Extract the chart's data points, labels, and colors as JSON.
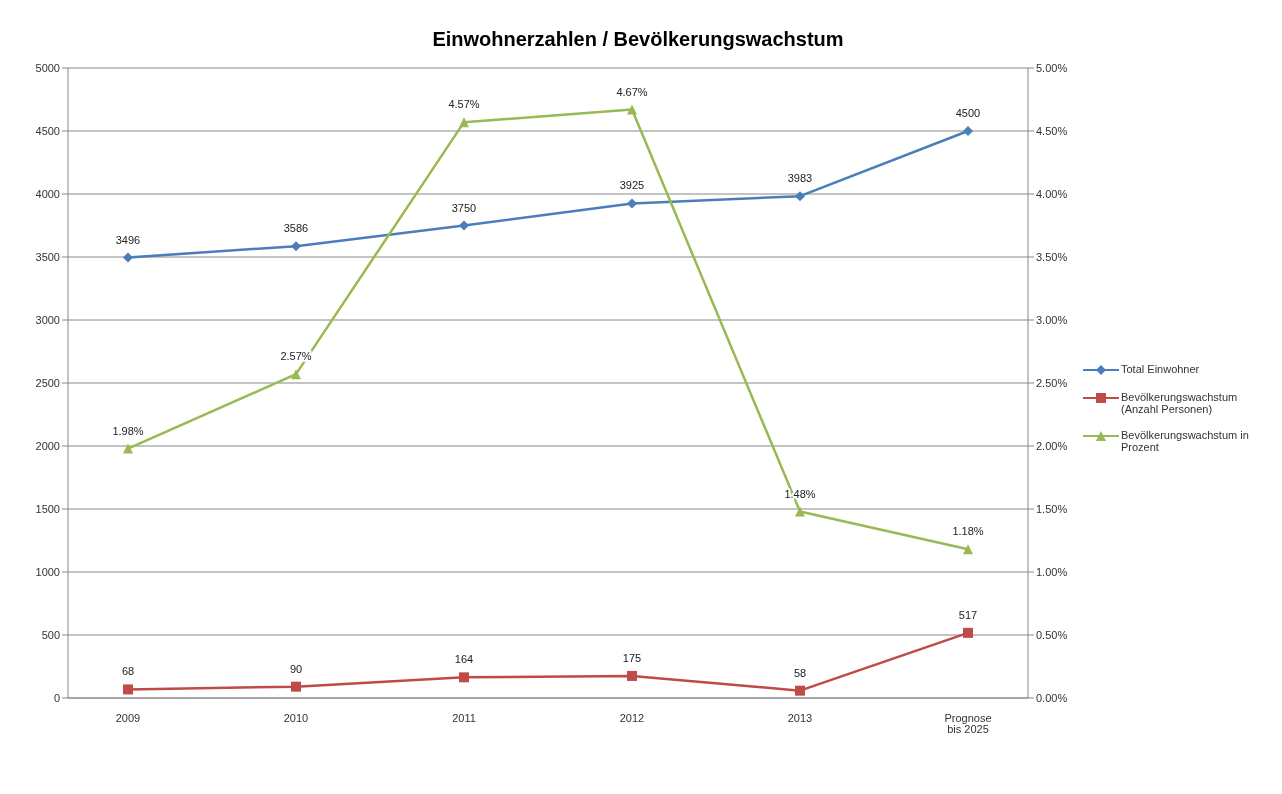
{
  "chart_data": {
    "type": "line",
    "title": "Einwohnerzahlen / Bevölkerungswachstum",
    "categories": [
      "2009",
      "2010",
      "2011",
      "2012",
      "2013",
      "Prognose bis 2025"
    ],
    "series": [
      {
        "name": "Total Einwohner",
        "color": "#4a7ebb",
        "marker": "diamond",
        "values": [
          3496,
          3586,
          3750,
          3925,
          3983,
          4500
        ],
        "value_labels": [
          "3496",
          "3586",
          "3750",
          "3925",
          "3983",
          "4500"
        ]
      },
      {
        "name": "Bevölkerungswachstum (Anzahl Personen)",
        "color": "#be4b48",
        "marker": "square",
        "values": [
          68,
          90,
          164,
          175,
          58,
          517
        ],
        "value_labels": [
          "68",
          "90",
          "164",
          "175",
          "58",
          "517"
        ]
      },
      {
        "name": "Bevölkerungswachstum in Prozent",
        "color": "#98b954",
        "marker": "triangle",
        "axis": "y2",
        "values": [
          1.98,
          2.57,
          4.57,
          4.67,
          1.48,
          1.18
        ],
        "value_labels": [
          "1.98%",
          "2.57%",
          "4.57%",
          "4.67%",
          "1.48%",
          "1.18%"
        ]
      }
    ],
    "ylim": [
      0,
      5000
    ],
    "yticks": [
      0,
      500,
      1000,
      1500,
      2000,
      2500,
      3000,
      3500,
      4000,
      4500,
      5000
    ],
    "y2lim": [
      0,
      5
    ],
    "y2ticks": [
      {
        "value": 0,
        "label": "0.00%"
      },
      {
        "value": 0.5,
        "label": "0.50%"
      },
      {
        "value": 1,
        "label": "1.00%"
      },
      {
        "value": 1.5,
        "label": "1.50%"
      },
      {
        "value": 2,
        "label": "2.00%"
      },
      {
        "value": 2.5,
        "label": "2.50%"
      },
      {
        "value": 3,
        "label": "3.00%"
      },
      {
        "value": 3.5,
        "label": "3.50%"
      },
      {
        "value": 4,
        "label": "4.00%"
      },
      {
        "value": 4.5,
        "label": "4.50%"
      },
      {
        "value": 5,
        "label": "5.00%"
      }
    ],
    "grid": "y",
    "legend": "right",
    "line_style": "solid"
  }
}
